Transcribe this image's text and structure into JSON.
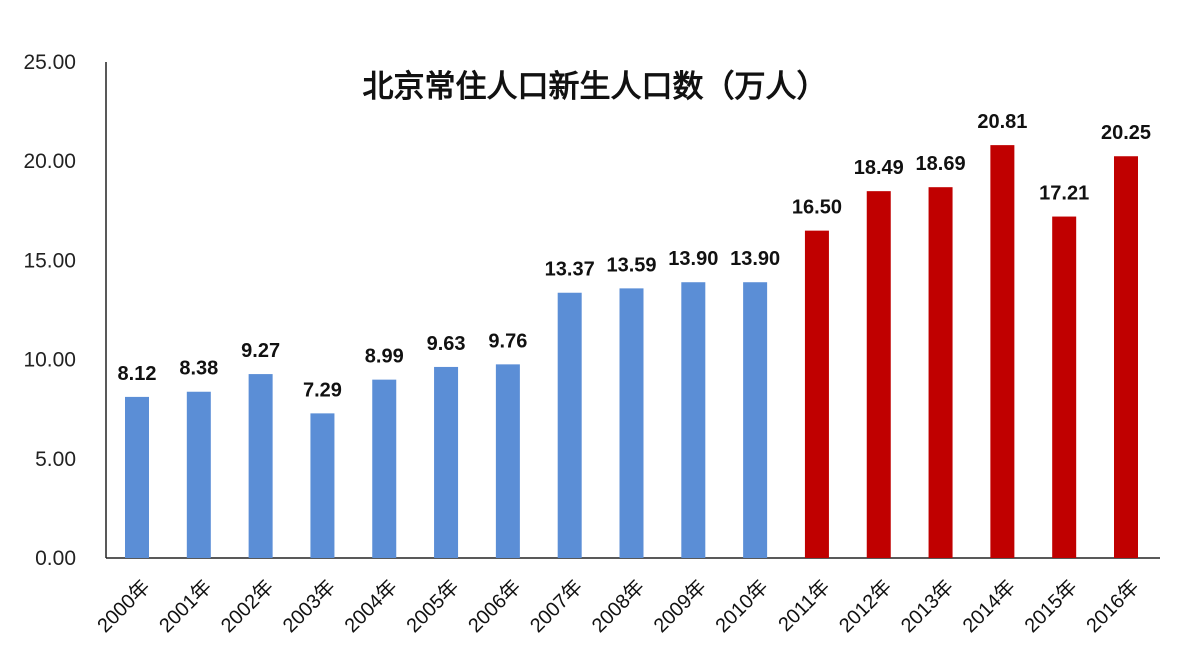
{
  "chart_data": {
    "type": "bar",
    "title": "北京常住人口新生人口数（万人）",
    "xlabel": "",
    "ylabel": "",
    "ylim": [
      0,
      25
    ],
    "yticks": [
      "0.00",
      "5.00",
      "10.00",
      "15.00",
      "20.00",
      "25.00"
    ],
    "grid": false,
    "categories": [
      "2000年",
      "2001年",
      "2002年",
      "2003年",
      "2004年",
      "2005年",
      "2006年",
      "2007年",
      "2008年",
      "2009年",
      "2010年",
      "2011年",
      "2012年",
      "2013年",
      "2014年",
      "2015年",
      "2016年"
    ],
    "values": [
      8.12,
      8.38,
      9.27,
      7.29,
      8.99,
      9.63,
      9.76,
      13.37,
      13.59,
      13.9,
      13.9,
      16.5,
      18.49,
      18.69,
      20.81,
      17.21,
      20.25
    ],
    "labels": [
      "8.12",
      "8.38",
      "9.27",
      "7.29",
      "8.99",
      "9.63",
      "9.76",
      "13.37",
      "13.59",
      "13.90",
      "13.90",
      "16.50",
      "18.49",
      "18.69",
      "20.81",
      "17.21",
      "20.25"
    ],
    "colors": {
      "blue": "#5b8ed6",
      "red": "#c00000",
      "axis": "#222222"
    },
    "color_by_index": [
      "blue",
      "blue",
      "blue",
      "blue",
      "blue",
      "blue",
      "blue",
      "blue",
      "blue",
      "blue",
      "blue",
      "red",
      "red",
      "red",
      "red",
      "red",
      "red"
    ]
  }
}
